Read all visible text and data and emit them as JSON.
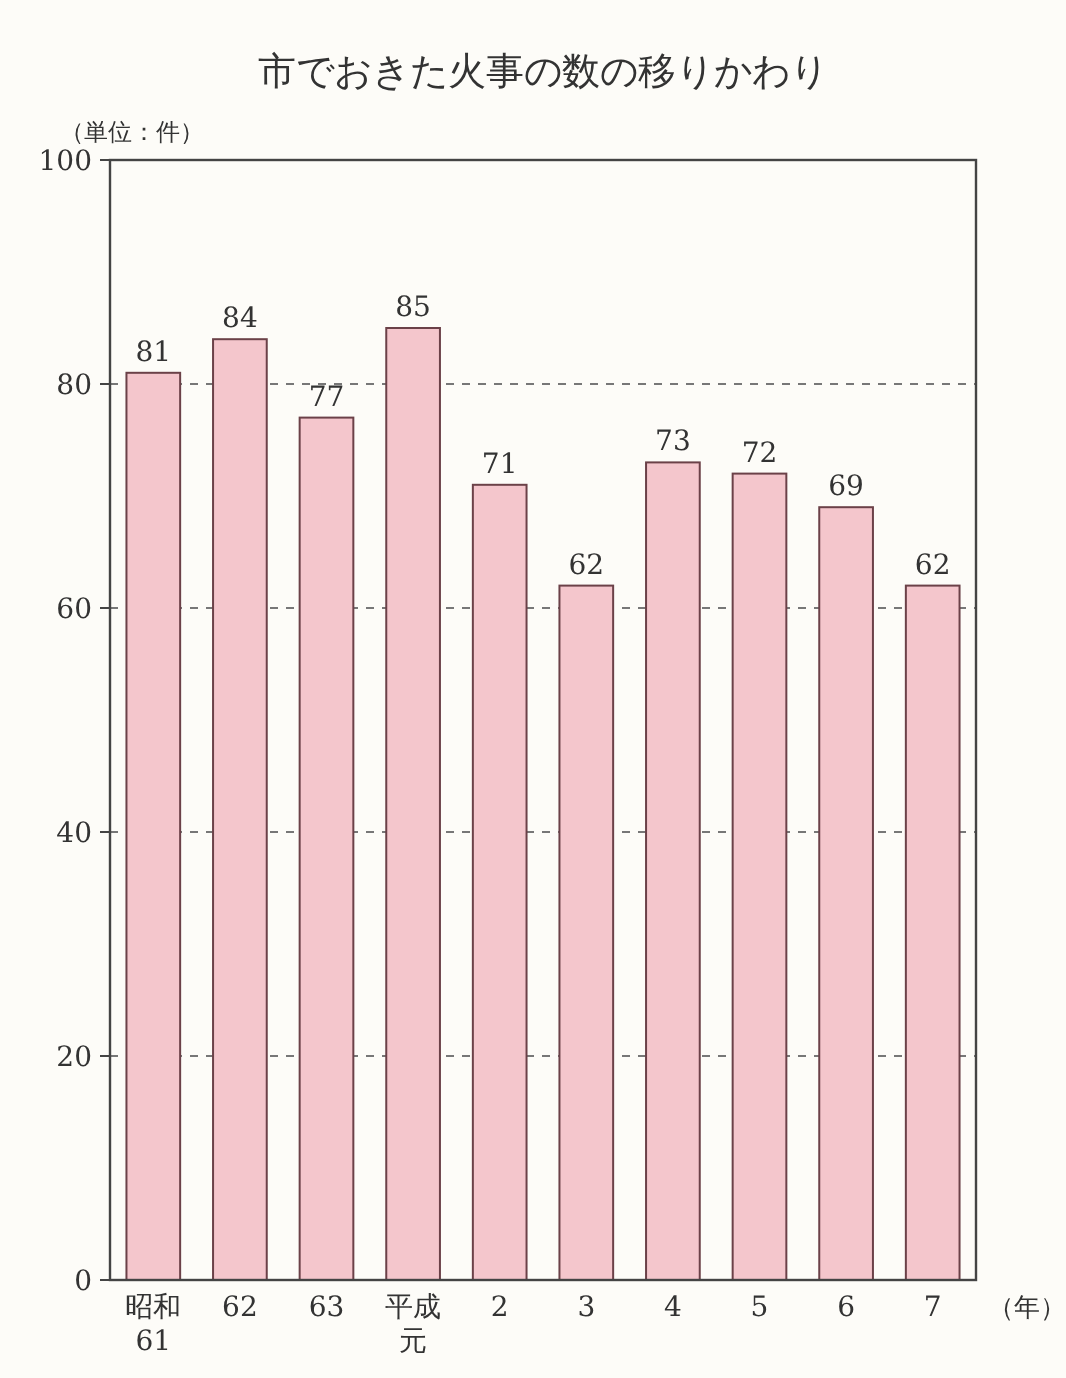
{
  "chart_data": {
    "type": "bar",
    "title": "市でおきた火事の数の移りかわり",
    "ylabel": "（単位：件）",
    "xlabel": "（年）",
    "categories": [
      "昭和61",
      "62",
      "63",
      "平成元",
      "2",
      "3",
      "4",
      "5",
      "6",
      "7"
    ],
    "values": [
      81,
      84,
      77,
      85,
      71,
      62,
      73,
      72,
      69,
      62
    ],
    "color": "#f4c6cc",
    "ylim": [
      0,
      100
    ],
    "yticks": [
      0,
      20,
      40,
      60,
      80,
      100
    ],
    "grid": "y",
    "data_labels": true
  }
}
